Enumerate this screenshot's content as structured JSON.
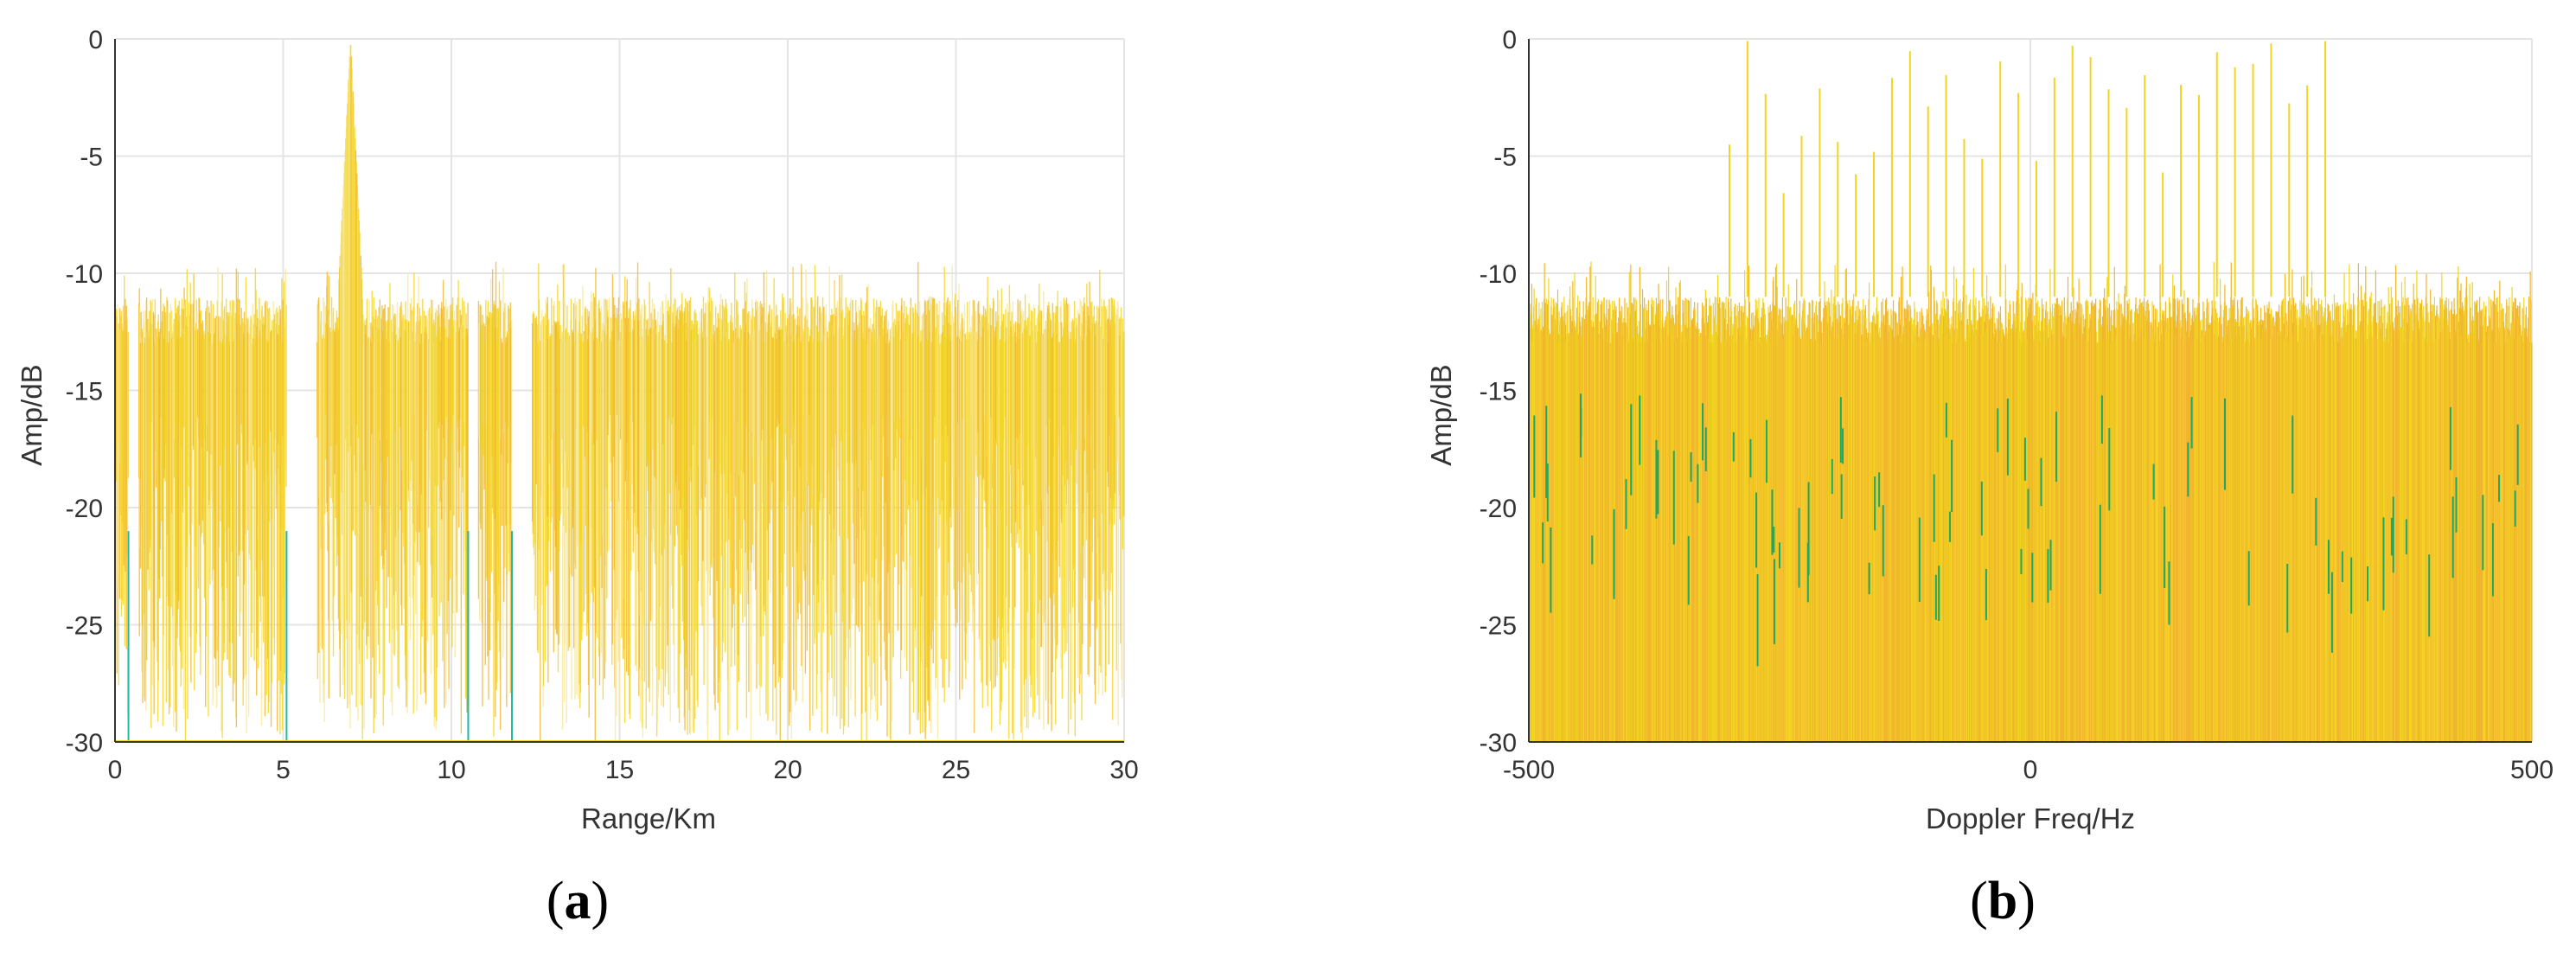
{
  "figure": {
    "panels": [
      {
        "caption_letter": "a"
      },
      {
        "caption_letter": "b"
      }
    ]
  },
  "colors": {
    "trace_yellow": "#f2d522",
    "trace_light": "#f7e79a",
    "trace_orange": "#f0b62d",
    "trace_teal": "#22b8a3",
    "trace_green": "#1fa864",
    "grid": "#e4e4e4",
    "axis": "#333333"
  },
  "chart_data": [
    {
      "type": "line",
      "panel": "a",
      "xlabel": "Range/Km",
      "ylabel": "Amp/dB",
      "xlim": [
        0,
        30
      ],
      "ylim": [
        -30,
        0
      ],
      "xticks": [
        0,
        5,
        10,
        15,
        20,
        25,
        30
      ],
      "yticks": [
        0,
        -5,
        -10,
        -15,
        -20,
        -25,
        -30
      ],
      "grid": true,
      "noise_floor_db": [
        -13,
        -11
      ],
      "peaks": [
        {
          "x": 7.0,
          "y": 0
        }
      ],
      "gaps_km": [
        [
          0.4,
          0.7
        ],
        [
          5.1,
          6.0
        ],
        [
          10.5,
          10.8
        ],
        [
          11.8,
          12.4
        ]
      ]
    },
    {
      "type": "line",
      "panel": "b",
      "xlabel": "Doppler Freq/Hz",
      "ylabel": "Amp/dB",
      "xlim": [
        -500,
        500
      ],
      "ylim": [
        -30,
        0
      ],
      "xticks": [
        -500,
        0,
        500
      ],
      "yticks": [
        0,
        -5,
        -10,
        -15,
        -20,
        -25,
        -30
      ],
      "grid": true,
      "noise_floor_db": [
        -13,
        -11
      ],
      "spur_band_hz": [
        -300,
        300
      ],
      "spur_spacing_hz": 18,
      "spur_peaks_db_range": [
        -3,
        0
      ]
    }
  ]
}
